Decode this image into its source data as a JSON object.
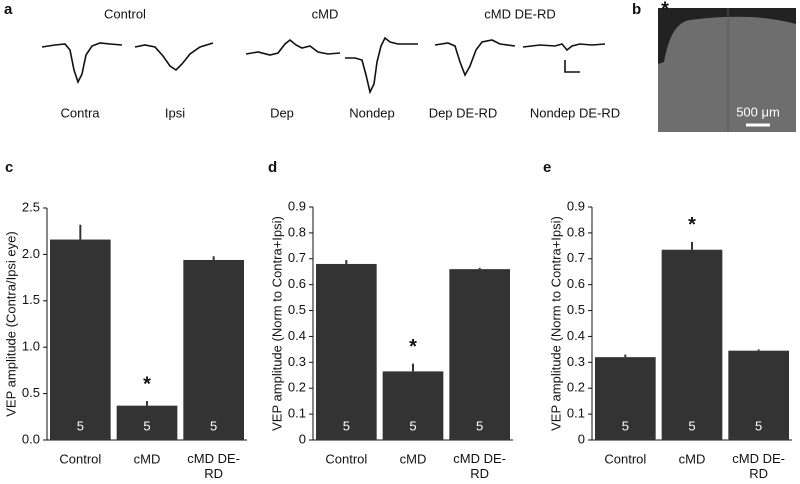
{
  "panel_a": {
    "letter": "a",
    "groups": [
      "Control",
      "cMD",
      "cMD DE-RD"
    ],
    "traces": [
      "Contra",
      "Ipsi",
      "Dep",
      "Nondep",
      "Dep DE-RD",
      "Nondep DE-RD"
    ]
  },
  "panel_b": {
    "letter": "b",
    "marker": "*",
    "scale_label": "500 μm"
  },
  "chart_data": [
    {
      "type": "bar",
      "panel": "c",
      "y_label": "VEP amplitude (Contra/Ipsi eye)",
      "categories": [
        "Control",
        "cMD",
        "cMD DE-RD"
      ],
      "values": [
        2.16,
        0.37,
        1.94
      ],
      "errors": [
        0.16,
        0.05,
        0.04
      ],
      "bar_annotations": [
        "5",
        "5",
        "5"
      ],
      "significance": [
        null,
        "*",
        null
      ],
      "color": "#333333",
      "ylim": [
        0,
        2.5
      ],
      "yticks": [
        {
          "value": 0,
          "label": "0.0"
        },
        0.5,
        {
          "value": 1,
          "label": "1.0"
        },
        1.5,
        {
          "value": 2,
          "label": "2.0"
        },
        2.5
      ],
      "grid": false
    },
    {
      "type": "bar",
      "panel": "d",
      "y_label": "VEP amplitude (Norm to Contra+Ipsi)",
      "categories": [
        "Control",
        "cMD",
        "cMD DE-RD"
      ],
      "values": [
        0.68,
        0.265,
        0.66
      ],
      "errors": [
        0.015,
        0.03,
        0.005
      ],
      "bar_annotations": [
        "5",
        "5",
        "5"
      ],
      "significance": [
        null,
        "*",
        null
      ],
      "color": "#333333",
      "ylim": [
        0,
        0.9
      ],
      "yticks": [
        0,
        0.1,
        0.2,
        0.3,
        0.4,
        0.5,
        0.6,
        0.7,
        0.8,
        0.9
      ],
      "grid": false
    },
    {
      "type": "bar",
      "panel": "e",
      "y_label": "VEP amplitude (Norm to Contra+Ipsi)",
      "categories": [
        "Control",
        "cMD",
        "cMD DE-RD"
      ],
      "values": [
        0.32,
        0.735,
        0.345
      ],
      "errors": [
        0.01,
        0.03,
        0.005
      ],
      "bar_annotations": [
        "5",
        "5",
        "5"
      ],
      "significance": [
        null,
        "*",
        null
      ],
      "color": "#333333",
      "ylim": [
        0,
        0.9
      ],
      "yticks": [
        0,
        0.1,
        0.2,
        0.3,
        0.4,
        0.5,
        0.6,
        0.7,
        0.8,
        0.9
      ],
      "grid": false
    }
  ]
}
